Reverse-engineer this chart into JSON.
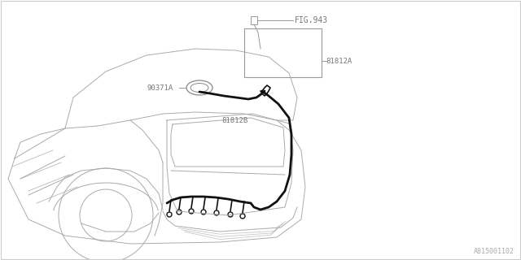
{
  "bg_color": "#ffffff",
  "line_color": "#aaaaaa",
  "thick_wire_color": "#111111",
  "label_color": "#777777",
  "fig_size": [
    6.4,
    3.2
  ],
  "dpi": 100,
  "labels": {
    "fig943": "FIG.943",
    "part_a": "81812A",
    "part_b": "81812B",
    "part_90371": "90371A",
    "ref": "A815001102"
  }
}
